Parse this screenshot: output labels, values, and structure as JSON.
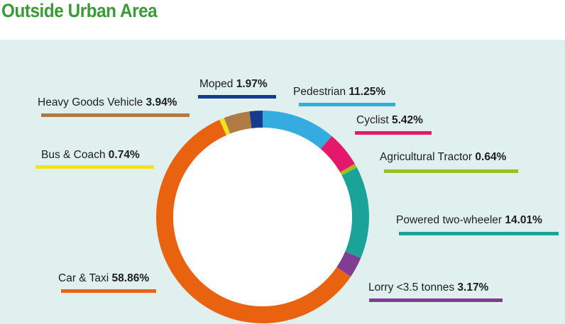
{
  "title": "Outside Urban Area",
  "chart_data": {
    "type": "pie",
    "variant": "donut",
    "title": "Outside Urban Area",
    "slices": [
      {
        "label": "Pedestrian",
        "value": 11.25,
        "display": "11.25%",
        "color": "#35ace0"
      },
      {
        "label": "Cyclist",
        "value": 5.42,
        "display": "5.42%",
        "color": "#e5196b"
      },
      {
        "label": "Agricultural Tractor",
        "value": 0.64,
        "display": "0.64%",
        "color": "#9bbe1e"
      },
      {
        "label": "Powered two-wheeler",
        "value": 14.01,
        "display": "14.01%",
        "color": "#1ba399"
      },
      {
        "label": "Lorry <3.5 tonnes",
        "value": 3.17,
        "display": "3.17%",
        "color": "#7f3d93"
      },
      {
        "label": "Car & Taxi",
        "value": 58.86,
        "display": "58.86%",
        "color": "#e8620f"
      },
      {
        "label": "Bus & Coach",
        "value": 0.74,
        "display": "0.74%",
        "color": "#f4e31c"
      },
      {
        "label": "Heavy Goods Vehicle",
        "value": 3.94,
        "display": "3.94%",
        "color": "#b07a45"
      },
      {
        "label": "Moped",
        "value": 1.97,
        "display": "1.97%",
        "color": "#163b8c"
      }
    ],
    "start_angle_deg": 0,
    "direction": "clockwise",
    "legend": "labels around chart"
  }
}
